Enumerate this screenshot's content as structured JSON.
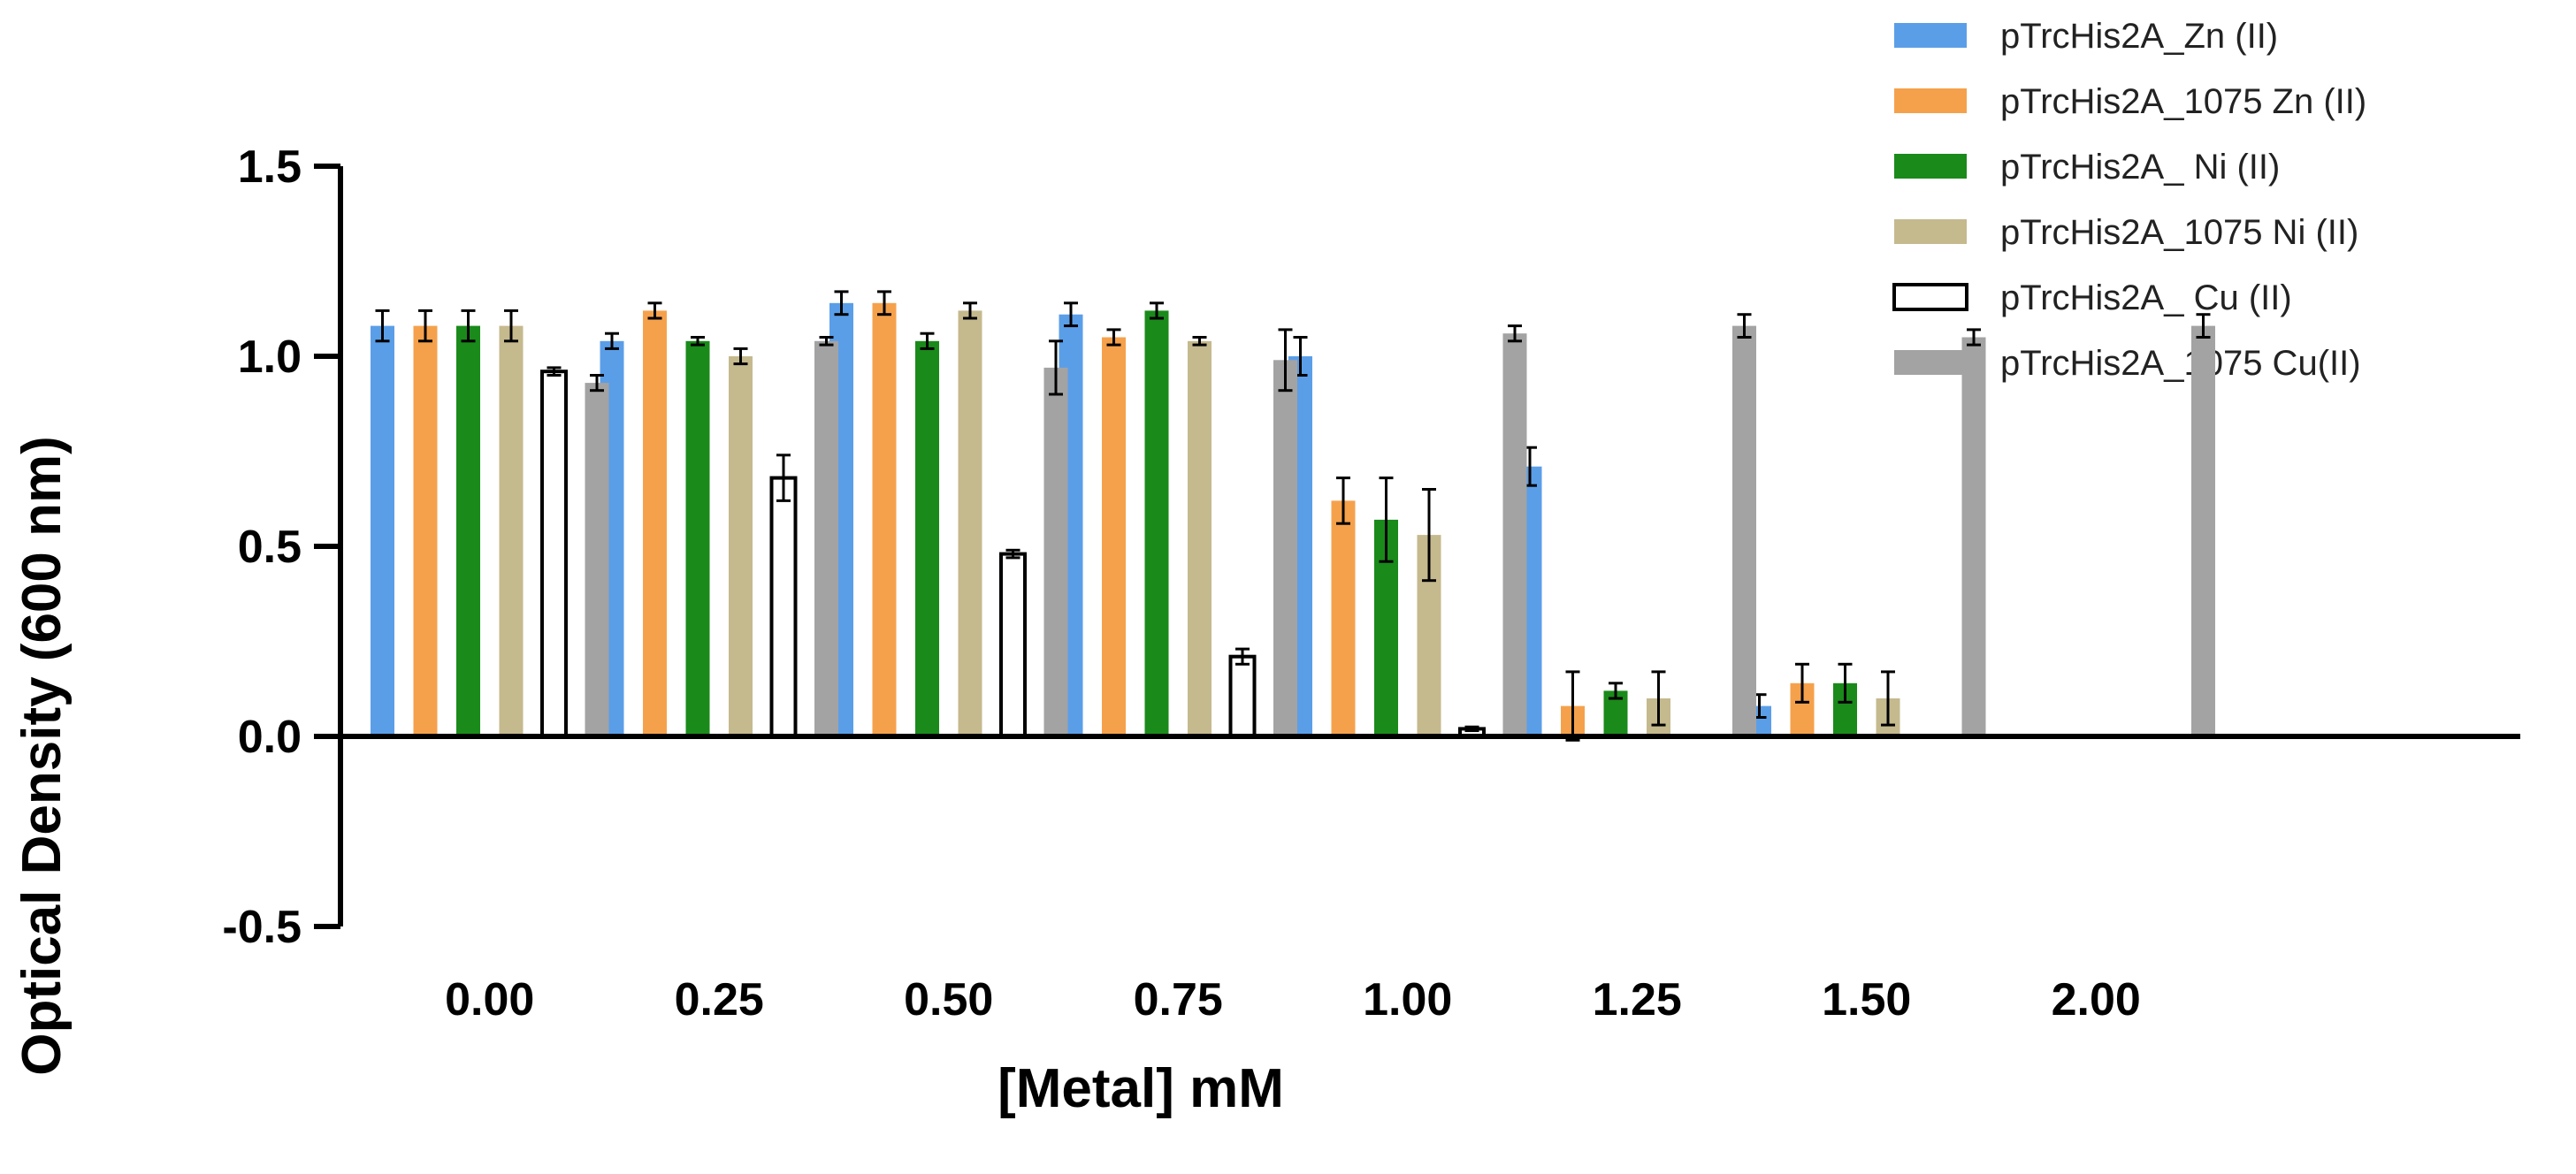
{
  "chart_data": {
    "type": "bar",
    "title": "",
    "xlabel": "[Metal] mM",
    "ylabel": "Optical Density (600 nm)",
    "ylim": [
      -0.5,
      1.5
    ],
    "yticks": [
      "-0.5",
      "0.0",
      "0.5",
      "1.0",
      "1.5"
    ],
    "ytick_values": [
      -0.5,
      0.0,
      0.5,
      1.0,
      1.5
    ],
    "categories": [
      "0.00",
      "0.25",
      "0.50",
      "0.75",
      "1.00",
      "1.25",
      "1.50",
      "2.00"
    ],
    "legend_position": "top-right",
    "series": [
      {
        "name": "pTrcHis2A_Zn (II)",
        "color": "#5b9ee8",
        "values": [
          1.08,
          1.04,
          1.14,
          1.11,
          1.0,
          0.71,
          0.08,
          0.0
        ],
        "errors": [
          0.04,
          0.02,
          0.03,
          0.03,
          0.05,
          0.05,
          0.03,
          0.0
        ]
      },
      {
        "name": "pTrcHis2A_1075 Zn (II)",
        "color": "#f5a14c",
        "values": [
          1.08,
          1.12,
          1.14,
          1.05,
          0.62,
          0.08,
          0.14,
          0.0
        ],
        "errors": [
          0.04,
          0.02,
          0.03,
          0.02,
          0.06,
          0.09,
          0.05,
          0.0
        ]
      },
      {
        "name": "pTrcHis2A_ Ni (II)",
        "color": "#1a8a1a",
        "values": [
          1.08,
          1.04,
          1.04,
          1.12,
          0.57,
          0.12,
          0.14,
          0.0
        ],
        "errors": [
          0.04,
          0.01,
          0.02,
          0.02,
          0.11,
          0.02,
          0.05,
          0.0
        ]
      },
      {
        "name": "pTrcHis2A_1075 Ni (II)",
        "color": "#c5b98e",
        "values": [
          1.08,
          1.0,
          1.12,
          1.04,
          0.53,
          0.1,
          0.1,
          0.0
        ],
        "errors": [
          0.04,
          0.02,
          0.02,
          0.01,
          0.12,
          0.07,
          0.07,
          0.0
        ]
      },
      {
        "name": "pTrcHis2A_ Cu (II)",
        "color": "#ffffff",
        "values": [
          0.96,
          0.68,
          0.48,
          0.21,
          0.02,
          0.0,
          0.0,
          0.0
        ],
        "errors": [
          0.01,
          0.06,
          0.01,
          0.02,
          0.005,
          0.0,
          0.0,
          0.0
        ]
      },
      {
        "name": "pTrcHis2A_1075 Cu(II)",
        "color": "#a3a3a3",
        "values": [
          0.93,
          1.04,
          0.97,
          0.99,
          1.06,
          1.08,
          1.05,
          1.08
        ],
        "errors": [
          0.02,
          0.01,
          0.07,
          0.08,
          0.02,
          0.03,
          0.02,
          0.03
        ]
      }
    ]
  }
}
